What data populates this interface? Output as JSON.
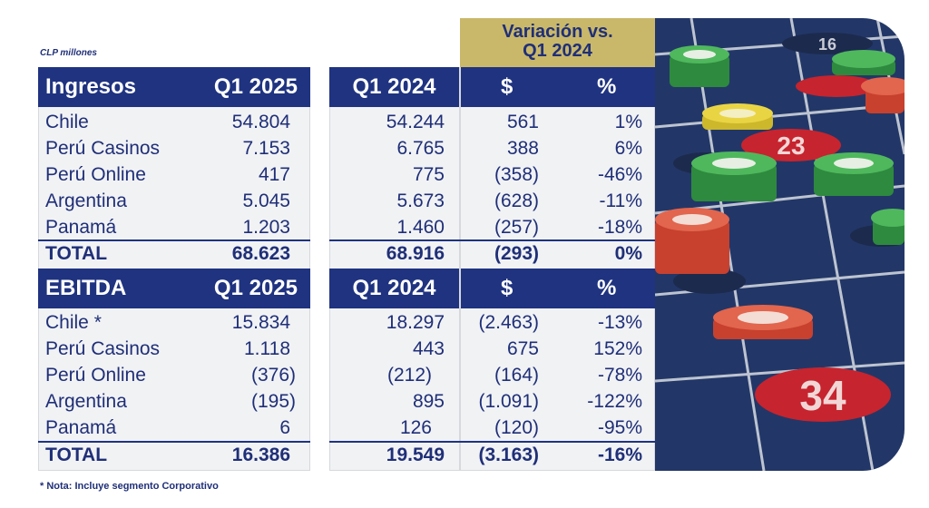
{
  "unit_label": "CLP millones",
  "variation_header": {
    "line1": "Variación vs.",
    "line2": "Q1 2024"
  },
  "ingresos": {
    "title": "Ingresos",
    "col_current": "Q1 2025",
    "col_prior": "Q1 2024",
    "col_dollar": "$",
    "col_pct": "%",
    "rows": [
      {
        "label": "Chile",
        "current": "54.804",
        "prior": "54.244",
        "dollar": "561",
        "pct": "1%"
      },
      {
        "label": "Perú Casinos",
        "current": "7.153",
        "prior": "6.765",
        "dollar": "388",
        "pct": "6%"
      },
      {
        "label": "Perú Online",
        "current": "417",
        "prior": "775",
        "dollar": "(358)",
        "pct": "-46%"
      },
      {
        "label": "Argentina",
        "current": "5.045",
        "prior": "5.673",
        "dollar": "(628)",
        "pct": "-11%"
      },
      {
        "label": "Panamá",
        "current": "1.203",
        "prior": "1.460",
        "dollar": "(257)",
        "pct": "-18%"
      }
    ],
    "total": {
      "label": "TOTAL",
      "current": "68.623",
      "prior": "68.916",
      "dollar": "(293)",
      "pct": "0%"
    }
  },
  "ebitda": {
    "title": "EBITDA",
    "col_current": "Q1 2025",
    "col_prior": "Q1 2024",
    "col_dollar": "$",
    "col_pct": "%",
    "rows": [
      {
        "label": "Chile *",
        "current": "15.834",
        "prior": "18.297",
        "dollar": "(2.463)",
        "pct": "-13%"
      },
      {
        "label": "Perú Casinos",
        "current": "1.118",
        "prior": "443",
        "dollar": "675",
        "pct": "152%"
      },
      {
        "label": "Perú Online",
        "current": "(376)",
        "prior": "(212)",
        "dollar": "(164)",
        "pct": "-78%"
      },
      {
        "label": "Argentina",
        "current": "(195)",
        "prior": "895",
        "dollar": "(1.091)",
        "pct": "-122%"
      },
      {
        "label": "Panamá",
        "current": "6",
        "prior": "126",
        "dollar": "(120)",
        "pct": "-95%"
      }
    ],
    "total": {
      "label": "TOTAL",
      "current": "16.386",
      "prior": "19.549",
      "dollar": "(3.163)",
      "pct": "-16%"
    }
  },
  "footnote": "* Nota: Incluye segmento Corporativo",
  "photo": {
    "subject": "roulette table with casino chips",
    "numbers": [
      "23",
      "34",
      "16"
    ]
  },
  "colors": {
    "navy": "#1f3380",
    "gold": "#c9b86a",
    "panel": "#f1f2f4",
    "text": "#1f2f78"
  }
}
